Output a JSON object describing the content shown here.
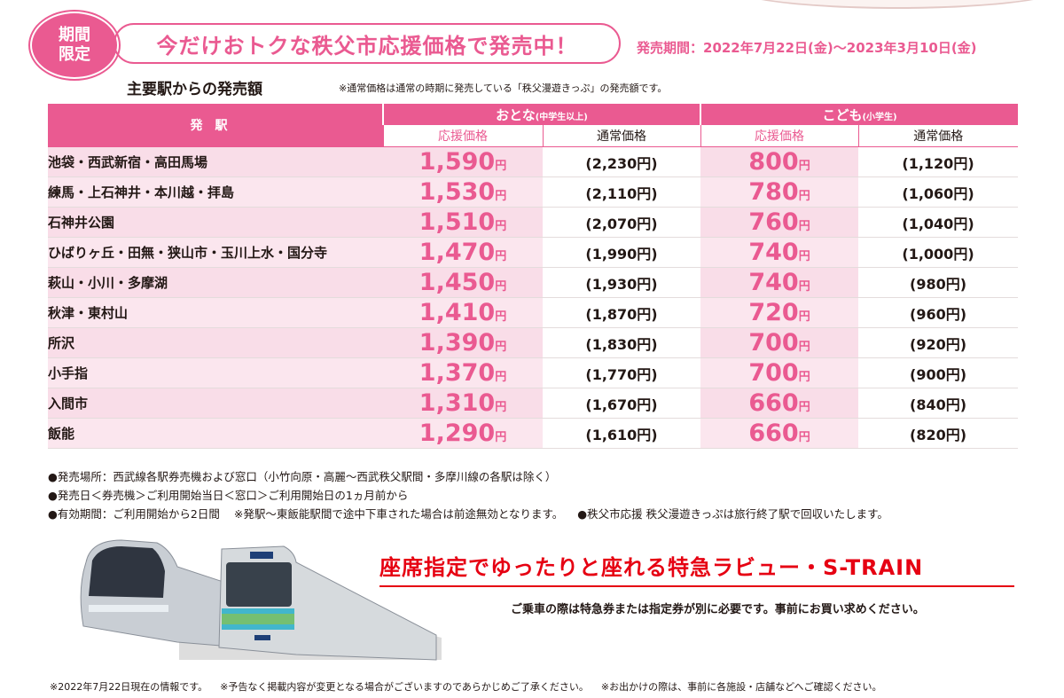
{
  "badge": {
    "line1": "期間",
    "line2": "限定"
  },
  "headline": "今だけおトクな秩父市応援価格で発売中！",
  "period": "発売期間：2022年7月22日(金)～2023年3月10日(金)",
  "subhead": "主要駅からの発売額",
  "subnote": "※通常価格は通常の時期に発売している「秩父漫遊きっぷ」の発売額です。",
  "table": {
    "station_header": "発駅",
    "adult_header": "おとな",
    "adult_header_note": "(中学生以上)",
    "child_header": "こども",
    "child_header_note": "(小学生)",
    "support_label": "応援価格",
    "normal_label": "通常価格",
    "yen": "円",
    "rows": [
      {
        "station": "池袋・西武新宿・高田馬場",
        "adult_support": "1,590",
        "adult_normal": "(2,230円)",
        "child_support": "800",
        "child_normal": "(1,120円)"
      },
      {
        "station": "練馬・上石神井・本川越・拝島",
        "adult_support": "1,530",
        "adult_normal": "(2,110円)",
        "child_support": "780",
        "child_normal": "(1,060円)"
      },
      {
        "station": "石神井公園",
        "adult_support": "1,510",
        "adult_normal": "(2,070円)",
        "child_support": "760",
        "child_normal": "(1,040円)"
      },
      {
        "station": "ひばりヶ丘・田無・狭山市・玉川上水・国分寺",
        "adult_support": "1,470",
        "adult_normal": "(1,990円)",
        "child_support": "740",
        "child_normal": "(1,000円)"
      },
      {
        "station": "萩山・小川・多摩湖",
        "adult_support": "1,450",
        "adult_normal": "(1,930円)",
        "child_support": "740",
        "child_normal": "(980円)"
      },
      {
        "station": "秋津・東村山",
        "adult_support": "1,410",
        "adult_normal": "(1,870円)",
        "child_support": "720",
        "child_normal": "(960円)"
      },
      {
        "station": "所沢",
        "adult_support": "1,390",
        "adult_normal": "(1,830円)",
        "child_support": "700",
        "child_normal": "(920円)"
      },
      {
        "station": "小手指",
        "adult_support": "1,370",
        "adult_normal": "(1,770円)",
        "child_support": "700",
        "child_normal": "(900円)"
      },
      {
        "station": "入間市",
        "adult_support": "1,310",
        "adult_normal": "(1,670円)",
        "child_support": "660",
        "child_normal": "(840円)"
      },
      {
        "station": "飯能",
        "adult_support": "1,290",
        "adult_normal": "(1,610円)",
        "child_support": "660",
        "child_normal": "(820円)"
      }
    ]
  },
  "notes": {
    "line1": "●発売場所：西武線各駅券売機および窓口（小竹向原・高麗～西武秩父駅間・多摩川線の各駅は除く）",
    "line2": "●発売日＜券売機＞ご利用開始当日＜窓口＞ご利用開始日の1ヵ月前から",
    "line3a": "●有効期間：ご利用開始から2日間",
    "line3b": "※発駅～東飯能駅間で途中下車された場合は前途無効となります。",
    "line3c": "●秩父市応援 秩父漫遊きっぷは旅行終了駅で回収いたします。"
  },
  "limited_express": {
    "title": "座席指定でゆったりと座れる特急ラビュー・S-TRAIN",
    "desc": "ご乗車の際は特急券または指定券が別に必要です。事前にお買い求めください。"
  },
  "footer": {
    "a": "※2022年7月22日現在の情報です。",
    "b": "※予告なく掲載内容が変更となる場合がございますのであらかじめご了承ください。",
    "c": "※お出かけの際は、事前に各施設・店舗などへご確認ください。"
  },
  "colors": {
    "accent": "#ea5a91",
    "row_bg": "#fbe6ee",
    "express_red": "#e60012"
  }
}
